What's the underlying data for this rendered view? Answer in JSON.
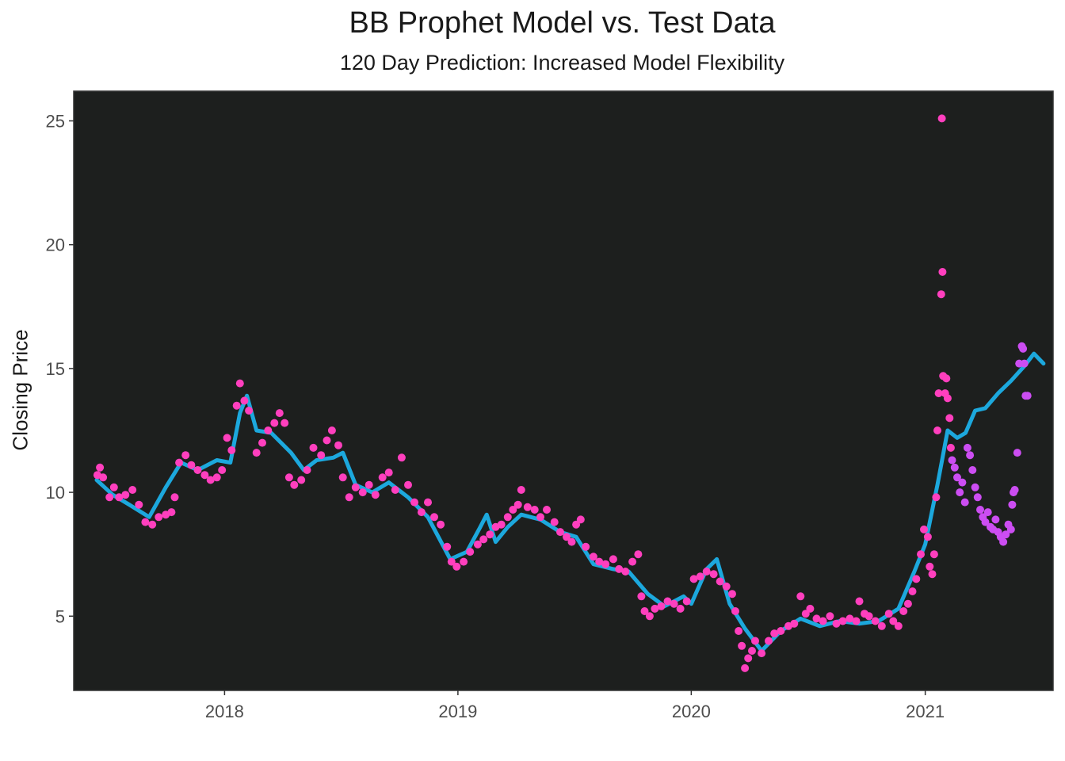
{
  "chart_data": {
    "type": "scatter",
    "title": "BB Prophet Model vs. Test Data",
    "subtitle": "120 Day Prediction: Increased Model Flexibility",
    "xlabel": "",
    "ylabel": "Closing Price",
    "x_axis": {
      "type": "date",
      "range": [
        "2017-05-10",
        "2021-07-20"
      ],
      "ticks": [
        "2018-01-01",
        "2019-01-01",
        "2020-01-01",
        "2021-01-01"
      ],
      "tick_labels": [
        "2018",
        "2019",
        "2020",
        "2021"
      ]
    },
    "y_axis": {
      "range": [
        2,
        26.2
      ],
      "ticks": [
        5,
        10,
        15,
        20,
        25
      ]
    },
    "grid": false,
    "legend": "none",
    "colors": {
      "panel": "#1d1f1e",
      "forecast": "#1ca8dd",
      "train": "#ff3fbe",
      "test": "#cc4df2"
    },
    "series": [
      {
        "type": "line",
        "color": "#1ca8dd",
        "points": [
          [
            "2017-06-15",
            10.5
          ],
          [
            "2017-07-10",
            9.9
          ],
          [
            "2017-08-05",
            9.5
          ],
          [
            "2017-09-05",
            9.0
          ],
          [
            "2017-10-01",
            10.2
          ],
          [
            "2017-10-25",
            11.2
          ],
          [
            "2017-11-20",
            10.9
          ],
          [
            "2017-12-20",
            11.3
          ],
          [
            "2018-01-10",
            11.2
          ],
          [
            "2018-01-25",
            13.2
          ],
          [
            "2018-02-05",
            13.9
          ],
          [
            "2018-02-20",
            12.5
          ],
          [
            "2018-03-15",
            12.4
          ],
          [
            "2018-04-15",
            11.6
          ],
          [
            "2018-05-05",
            10.9
          ],
          [
            "2018-05-25",
            11.3
          ],
          [
            "2018-06-20",
            11.4
          ],
          [
            "2018-07-05",
            11.6
          ],
          [
            "2018-07-25",
            10.3
          ],
          [
            "2018-08-20",
            10.0
          ],
          [
            "2018-09-15",
            10.4
          ],
          [
            "2018-10-15",
            9.8
          ],
          [
            "2018-11-15",
            9.0
          ],
          [
            "2018-12-20",
            7.3
          ],
          [
            "2019-01-15",
            7.6
          ],
          [
            "2019-02-05",
            8.6
          ],
          [
            "2019-02-15",
            9.1
          ],
          [
            "2019-03-01",
            8.0
          ],
          [
            "2019-03-20",
            8.6
          ],
          [
            "2019-04-10",
            9.1
          ],
          [
            "2019-05-10",
            8.9
          ],
          [
            "2019-06-10",
            8.4
          ],
          [
            "2019-07-05",
            8.2
          ],
          [
            "2019-08-01",
            7.1
          ],
          [
            "2019-09-01",
            6.9
          ],
          [
            "2019-09-25",
            6.8
          ],
          [
            "2019-10-25",
            5.9
          ],
          [
            "2019-11-20",
            5.4
          ],
          [
            "2019-12-20",
            5.8
          ],
          [
            "2020-01-01",
            5.5
          ],
          [
            "2020-01-25",
            6.9
          ],
          [
            "2020-02-10",
            7.3
          ],
          [
            "2020-03-01",
            5.5
          ],
          [
            "2020-03-25",
            4.5
          ],
          [
            "2020-04-20",
            3.6
          ],
          [
            "2020-05-20",
            4.4
          ],
          [
            "2020-06-20",
            4.9
          ],
          [
            "2020-07-20",
            4.6
          ],
          [
            "2020-08-20",
            4.8
          ],
          [
            "2020-09-20",
            4.7
          ],
          [
            "2020-10-20",
            4.8
          ],
          [
            "2020-11-20",
            5.3
          ],
          [
            "2020-12-15",
            6.8
          ],
          [
            "2021-01-01",
            7.9
          ],
          [
            "2021-01-20",
            10.3
          ],
          [
            "2021-02-05",
            12.5
          ],
          [
            "2021-02-20",
            12.2
          ],
          [
            "2021-03-05",
            12.4
          ],
          [
            "2021-03-20",
            13.3
          ],
          [
            "2021-04-05",
            13.4
          ],
          [
            "2021-04-25",
            14.0
          ],
          [
            "2021-05-15",
            14.5
          ],
          [
            "2021-06-05",
            15.1
          ],
          [
            "2021-06-20",
            15.6
          ],
          [
            "2021-07-05",
            15.2
          ]
        ]
      },
      {
        "type": "scatter",
        "color": "#ff3fbe",
        "points": [
          [
            "2017-06-16",
            10.7
          ],
          [
            "2017-06-20",
            11.0
          ],
          [
            "2017-06-25",
            10.6
          ],
          [
            "2017-07-05",
            9.8
          ],
          [
            "2017-07-12",
            10.2
          ],
          [
            "2017-07-20",
            9.8
          ],
          [
            "2017-07-30",
            9.9
          ],
          [
            "2017-08-10",
            10.1
          ],
          [
            "2017-08-20",
            9.5
          ],
          [
            "2017-08-30",
            8.8
          ],
          [
            "2017-09-10",
            8.7
          ],
          [
            "2017-09-20",
            9.0
          ],
          [
            "2017-10-01",
            9.1
          ],
          [
            "2017-10-10",
            9.2
          ],
          [
            "2017-10-15",
            9.8
          ],
          [
            "2017-10-22",
            11.2
          ],
          [
            "2017-11-01",
            11.5
          ],
          [
            "2017-11-10",
            11.1
          ],
          [
            "2017-11-20",
            10.9
          ],
          [
            "2017-12-01",
            10.7
          ],
          [
            "2017-12-10",
            10.5
          ],
          [
            "2017-12-20",
            10.6
          ],
          [
            "2017-12-28",
            10.9
          ],
          [
            "2018-01-05",
            12.2
          ],
          [
            "2018-01-12",
            11.7
          ],
          [
            "2018-01-20",
            13.5
          ],
          [
            "2018-01-25",
            14.4
          ],
          [
            "2018-02-01",
            13.7
          ],
          [
            "2018-02-08",
            13.3
          ],
          [
            "2018-02-20",
            11.6
          ],
          [
            "2018-03-01",
            12.0
          ],
          [
            "2018-03-10",
            12.5
          ],
          [
            "2018-03-20",
            12.8
          ],
          [
            "2018-03-28",
            13.2
          ],
          [
            "2018-04-05",
            12.8
          ],
          [
            "2018-04-12",
            10.6
          ],
          [
            "2018-04-20",
            10.3
          ],
          [
            "2018-05-01",
            10.5
          ],
          [
            "2018-05-10",
            10.9
          ],
          [
            "2018-05-20",
            11.8
          ],
          [
            "2018-06-01",
            11.5
          ],
          [
            "2018-06-10",
            12.1
          ],
          [
            "2018-06-18",
            12.5
          ],
          [
            "2018-06-28",
            11.9
          ],
          [
            "2018-07-05",
            10.6
          ],
          [
            "2018-07-15",
            9.8
          ],
          [
            "2018-07-25",
            10.2
          ],
          [
            "2018-08-05",
            10.0
          ],
          [
            "2018-08-15",
            10.3
          ],
          [
            "2018-08-25",
            9.9
          ],
          [
            "2018-09-05",
            10.6
          ],
          [
            "2018-09-15",
            10.8
          ],
          [
            "2018-09-25",
            10.1
          ],
          [
            "2018-10-05",
            11.4
          ],
          [
            "2018-10-15",
            10.3
          ],
          [
            "2018-10-25",
            9.6
          ],
          [
            "2018-11-05",
            9.2
          ],
          [
            "2018-11-15",
            9.6
          ],
          [
            "2018-11-25",
            9.0
          ],
          [
            "2018-12-05",
            8.7
          ],
          [
            "2018-12-15",
            7.8
          ],
          [
            "2018-12-22",
            7.2
          ],
          [
            "2018-12-30",
            7.0
          ],
          [
            "2019-01-10",
            7.2
          ],
          [
            "2019-01-20",
            7.6
          ],
          [
            "2019-02-01",
            7.9
          ],
          [
            "2019-02-10",
            8.1
          ],
          [
            "2019-02-20",
            8.3
          ],
          [
            "2019-03-01",
            8.6
          ],
          [
            "2019-03-10",
            8.7
          ],
          [
            "2019-03-20",
            9.0
          ],
          [
            "2019-03-28",
            9.3
          ],
          [
            "2019-04-05",
            9.5
          ],
          [
            "2019-04-10",
            10.1
          ],
          [
            "2019-04-20",
            9.4
          ],
          [
            "2019-05-01",
            9.3
          ],
          [
            "2019-05-10",
            9.0
          ],
          [
            "2019-05-20",
            9.3
          ],
          [
            "2019-06-01",
            8.8
          ],
          [
            "2019-06-10",
            8.4
          ],
          [
            "2019-06-20",
            8.2
          ],
          [
            "2019-06-28",
            8.0
          ],
          [
            "2019-07-05",
            8.7
          ],
          [
            "2019-07-12",
            8.9
          ],
          [
            "2019-07-20",
            7.8
          ],
          [
            "2019-08-01",
            7.4
          ],
          [
            "2019-08-10",
            7.2
          ],
          [
            "2019-08-20",
            7.1
          ],
          [
            "2019-09-01",
            7.3
          ],
          [
            "2019-09-10",
            6.9
          ],
          [
            "2019-09-20",
            6.8
          ],
          [
            "2019-10-01",
            7.2
          ],
          [
            "2019-10-10",
            7.5
          ],
          [
            "2019-10-15",
            5.8
          ],
          [
            "2019-10-20",
            5.2
          ],
          [
            "2019-10-28",
            5.0
          ],
          [
            "2019-11-05",
            5.3
          ],
          [
            "2019-11-15",
            5.4
          ],
          [
            "2019-11-25",
            5.6
          ],
          [
            "2019-12-05",
            5.5
          ],
          [
            "2019-12-15",
            5.3
          ],
          [
            "2019-12-25",
            5.6
          ],
          [
            "2020-01-05",
            6.5
          ],
          [
            "2020-01-15",
            6.6
          ],
          [
            "2020-01-25",
            6.8
          ],
          [
            "2020-02-05",
            6.7
          ],
          [
            "2020-02-15",
            6.4
          ],
          [
            "2020-02-25",
            6.2
          ],
          [
            "2020-03-05",
            5.9
          ],
          [
            "2020-03-10",
            5.2
          ],
          [
            "2020-03-15",
            4.4
          ],
          [
            "2020-03-20",
            3.8
          ],
          [
            "2020-03-25",
            2.9
          ],
          [
            "2020-03-30",
            3.3
          ],
          [
            "2020-04-05",
            3.6
          ],
          [
            "2020-04-10",
            4.0
          ],
          [
            "2020-04-20",
            3.5
          ],
          [
            "2020-05-01",
            4.0
          ],
          [
            "2020-05-10",
            4.3
          ],
          [
            "2020-05-20",
            4.4
          ],
          [
            "2020-06-01",
            4.6
          ],
          [
            "2020-06-10",
            4.7
          ],
          [
            "2020-06-20",
            5.8
          ],
          [
            "2020-06-28",
            5.1
          ],
          [
            "2020-07-05",
            5.3
          ],
          [
            "2020-07-15",
            4.9
          ],
          [
            "2020-07-25",
            4.8
          ],
          [
            "2020-08-05",
            5.0
          ],
          [
            "2020-08-15",
            4.7
          ],
          [
            "2020-08-25",
            4.8
          ],
          [
            "2020-09-05",
            4.9
          ],
          [
            "2020-09-15",
            4.8
          ],
          [
            "2020-09-20",
            5.6
          ],
          [
            "2020-09-28",
            5.1
          ],
          [
            "2020-10-05",
            5.0
          ],
          [
            "2020-10-15",
            4.8
          ],
          [
            "2020-10-25",
            4.6
          ],
          [
            "2020-11-05",
            5.1
          ],
          [
            "2020-11-12",
            4.8
          ],
          [
            "2020-11-20",
            4.6
          ],
          [
            "2020-11-28",
            5.2
          ],
          [
            "2020-12-05",
            5.5
          ],
          [
            "2020-12-12",
            6.0
          ],
          [
            "2020-12-18",
            6.5
          ],
          [
            "2020-12-25",
            7.5
          ],
          [
            "2020-12-30",
            8.5
          ],
          [
            "2021-01-05",
            8.2
          ],
          [
            "2021-01-08",
            7.0
          ],
          [
            "2021-01-12",
            6.7
          ],
          [
            "2021-01-15",
            7.5
          ],
          [
            "2021-01-18",
            9.8
          ],
          [
            "2021-01-20",
            12.5
          ],
          [
            "2021-01-22",
            14.0
          ],
          [
            "2021-01-26",
            18.0
          ],
          [
            "2021-01-27",
            25.1
          ],
          [
            "2021-01-28",
            18.9
          ],
          [
            "2021-01-29",
            14.7
          ],
          [
            "2021-02-01",
            14.0
          ],
          [
            "2021-02-03",
            14.6
          ],
          [
            "2021-02-05",
            13.8
          ],
          [
            "2021-02-08",
            13.0
          ],
          [
            "2021-02-10",
            11.8
          ]
        ]
      },
      {
        "type": "scatter",
        "color": "#cc4df2",
        "points": [
          [
            "2021-02-12",
            11.3
          ],
          [
            "2021-02-16",
            11.0
          ],
          [
            "2021-02-20",
            10.6
          ],
          [
            "2021-02-24",
            10.0
          ],
          [
            "2021-02-28",
            10.4
          ],
          [
            "2021-03-04",
            9.6
          ],
          [
            "2021-03-08",
            11.8
          ],
          [
            "2021-03-12",
            11.5
          ],
          [
            "2021-03-16",
            10.9
          ],
          [
            "2021-03-20",
            10.2
          ],
          [
            "2021-03-24",
            9.8
          ],
          [
            "2021-03-28",
            9.3
          ],
          [
            "2021-04-01",
            9.0
          ],
          [
            "2021-04-05",
            8.8
          ],
          [
            "2021-04-09",
            9.2
          ],
          [
            "2021-04-13",
            8.6
          ],
          [
            "2021-04-17",
            8.5
          ],
          [
            "2021-04-21",
            8.9
          ],
          [
            "2021-04-25",
            8.4
          ],
          [
            "2021-04-29",
            8.2
          ],
          [
            "2021-05-03",
            8.0
          ],
          [
            "2021-05-07",
            8.3
          ],
          [
            "2021-05-11",
            8.7
          ],
          [
            "2021-05-15",
            8.5
          ],
          [
            "2021-05-17",
            9.5
          ],
          [
            "2021-05-19",
            10.0
          ],
          [
            "2021-05-21",
            10.1
          ],
          [
            "2021-05-25",
            11.6
          ],
          [
            "2021-05-28",
            15.2
          ],
          [
            "2021-06-01",
            15.9
          ],
          [
            "2021-06-03",
            15.8
          ],
          [
            "2021-06-05",
            15.2
          ],
          [
            "2021-06-07",
            13.9
          ],
          [
            "2021-06-10",
            13.9
          ]
        ]
      }
    ]
  }
}
